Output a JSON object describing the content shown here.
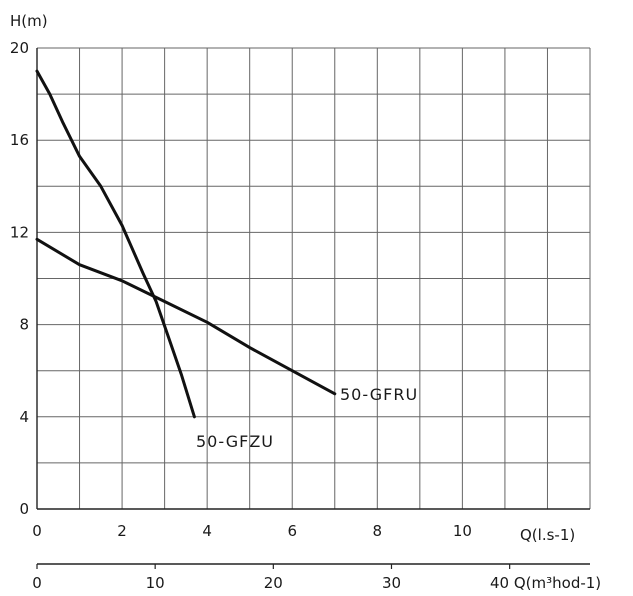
{
  "chart_data": {
    "type": "line",
    "ylabel": "H(m)",
    "xlabel": "Q(l.s-1)",
    "x2label": "40 Q(m³hod-1)",
    "xlim": [
      0,
      13
    ],
    "ylim": [
      0,
      20
    ],
    "x_ticks": [
      "0",
      "2",
      "4",
      "6",
      "8",
      "10"
    ],
    "y_ticks": [
      "0",
      "4",
      "8",
      "12",
      "16",
      "20"
    ],
    "x2_ticks": [
      "0",
      "10",
      "20",
      "30"
    ],
    "grid": true,
    "series": [
      {
        "name": "50-GFZU",
        "color": "#111111",
        "x": [
          0,
          0.3,
          0.6,
          1,
          1.5,
          2,
          2.5,
          2.8,
          3.1,
          3.4,
          3.7
        ],
        "y": [
          19,
          18,
          16.8,
          15.3,
          14,
          12.3,
          10.2,
          9,
          7.4,
          5.8,
          4
        ]
      },
      {
        "name": "50-GFRU",
        "color": "#111111",
        "x": [
          0,
          1,
          2,
          3,
          4,
          5,
          6,
          7
        ],
        "y": [
          11.7,
          10.6,
          9.9,
          9,
          8.1,
          7,
          6,
          5
        ]
      }
    ]
  }
}
